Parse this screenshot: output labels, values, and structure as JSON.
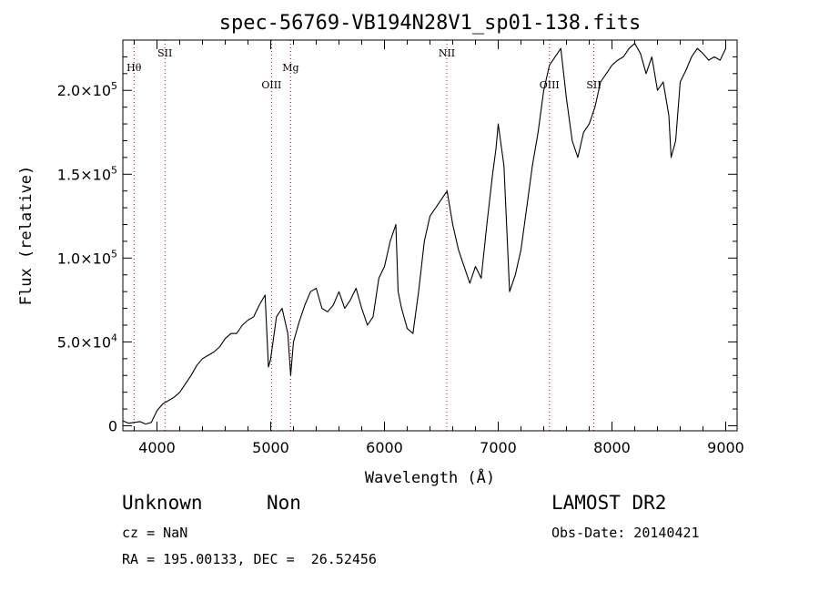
{
  "chart_data": {
    "type": "line",
    "title": "spec-56769-VB194N28V1_sp01-138.fits",
    "xlabel": "Wavelength (Å)",
    "ylabel": "Flux (relative)",
    "xlim": [
      3700,
      9100
    ],
    "ylim": [
      -3000,
      230000
    ],
    "x_ticks": [
      4000,
      5000,
      6000,
      7000,
      8000,
      9000
    ],
    "x_tick_labels": [
      "4000",
      "5000",
      "6000",
      "7000",
      "8000",
      "9000"
    ],
    "y_ticks": [
      0,
      50000,
      100000,
      150000,
      200000
    ],
    "y_tick_labels": [
      {
        "mant": "0",
        "exp": ""
      },
      {
        "mant": "5.0×10",
        "exp": "4"
      },
      {
        "mant": "1.0×10",
        "exp": "5"
      },
      {
        "mant": "1.5×10",
        "exp": "5"
      },
      {
        "mant": "2.0×10",
        "exp": "5"
      }
    ],
    "lines": [
      {
        "label": "Hθ",
        "wavelength": 3798,
        "label_row": 1
      },
      {
        "label": "SII",
        "wavelength": 4070,
        "label_row": 0
      },
      {
        "label": "OIII",
        "wavelength": 5007,
        "label_row": 2
      },
      {
        "label": "Mg",
        "wavelength": 5175,
        "label_row": 1
      },
      {
        "label": "NII",
        "wavelength": 6548,
        "label_row": 0
      },
      {
        "label": "OIII",
        "wavelength": 7450,
        "label_row": 2
      },
      {
        "label": "SII",
        "wavelength": 7840,
        "label_row": 2
      }
    ],
    "grid": false,
    "series": [
      {
        "x": [
          3700,
          3750,
          3800,
          3850,
          3900,
          3950,
          4000,
          4050,
          4100,
          4150,
          4200,
          4250,
          4300,
          4350,
          4400,
          4450,
          4500,
          4550,
          4600,
          4650,
          4700,
          4750,
          4800,
          4850,
          4900,
          4950,
          4980,
          5000,
          5050,
          5100,
          5150,
          5175,
          5200,
          5250,
          5300,
          5350,
          5400,
          5450,
          5500,
          5550,
          5600,
          5650,
          5700,
          5750,
          5800,
          5850,
          5900,
          5950,
          6000,
          6050,
          6100,
          6120,
          6150,
          6200,
          6250,
          6300,
          6350,
          6400,
          6450,
          6500,
          6550,
          6600,
          6650,
          6700,
          6750,
          6800,
          6850,
          6900,
          6950,
          6980,
          7000,
          7050,
          7100,
          7150,
          7200,
          7250,
          7300,
          7350,
          7400,
          7450,
          7500,
          7550,
          7600,
          7650,
          7700,
          7750,
          7800,
          7850,
          7900,
          7950,
          8000,
          8050,
          8100,
          8150,
          8200,
          8250,
          8300,
          8350,
          8400,
          8450,
          8500,
          8520,
          8560,
          8600,
          8650,
          8700,
          8750,
          8800,
          8850,
          8900,
          8950,
          9000
        ],
        "values": [
          3000,
          1500,
          2000,
          2500,
          1000,
          2000,
          9000,
          13000,
          15000,
          17000,
          20000,
          25000,
          30000,
          36000,
          40000,
          42000,
          44000,
          47000,
          52000,
          55000,
          55000,
          60000,
          63000,
          65000,
          72000,
          78000,
          35000,
          40000,
          65000,
          70000,
          55000,
          30000,
          50000,
          62000,
          72000,
          80000,
          82000,
          70000,
          68000,
          72000,
          80000,
          70000,
          75000,
          82000,
          70000,
          60000,
          65000,
          88000,
          95000,
          110000,
          120000,
          80000,
          70000,
          58000,
          55000,
          80000,
          110000,
          125000,
          130000,
          135000,
          140000,
          120000,
          105000,
          95000,
          85000,
          95000,
          88000,
          120000,
          150000,
          165000,
          180000,
          155000,
          80000,
          90000,
          105000,
          130000,
          155000,
          175000,
          200000,
          215000,
          220000,
          225000,
          195000,
          170000,
          160000,
          175000,
          180000,
          190000,
          205000,
          210000,
          215000,
          218000,
          220000,
          225000,
          228000,
          222000,
          210000,
          220000,
          200000,
          205000,
          185000,
          160000,
          170000,
          205000,
          212000,
          220000,
          225000,
          222000,
          218000,
          220000,
          218000,
          225000
        ]
      }
    ]
  },
  "info": {
    "class_label": "Unknown",
    "subclass_label": "Non",
    "survey_label": "LAMOST DR2",
    "cz_text": "cz = NaN",
    "obsdate_text": "Obs-Date: 20140421",
    "radec_text": "RA = 195.00133, DEC =  26.52456"
  }
}
